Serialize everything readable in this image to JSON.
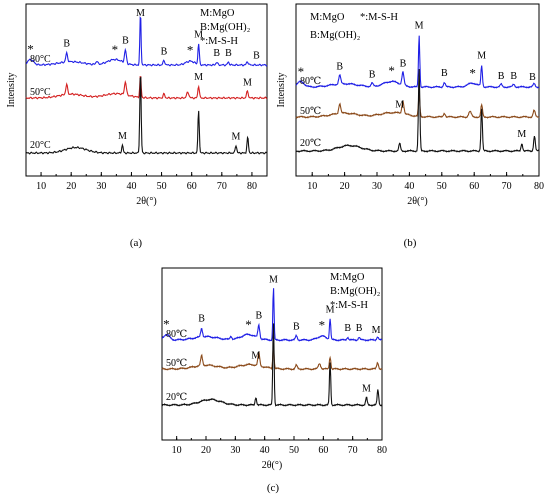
{
  "figure": {
    "panel_labels": [
      "(a)",
      "(b)",
      "(c)"
    ]
  },
  "chart_data": [
    {
      "panel": "(a)",
      "type": "line",
      "xlabel": "2θ(°)",
      "ylabel": "Intensity",
      "xlim": [
        5,
        85
      ],
      "x_ticks": [
        "10",
        "20",
        "30",
        "40",
        "50",
        "60",
        "70",
        "80"
      ],
      "legend": [
        "M:MgO",
        "B:Mg(OH)₂",
        "*:M-S-H"
      ],
      "series": [
        {
          "name": "80°C",
          "color": "#1f1fe6"
        },
        {
          "name": "50°C",
          "color": "#d42020"
        },
        {
          "name": "20°C",
          "color": "#111111"
        }
      ],
      "peak_labels": [
        {
          "series": 0,
          "x": 6.5,
          "label": "*"
        },
        {
          "series": 0,
          "x": 18.5,
          "label": "B"
        },
        {
          "series": 0,
          "x": 34.5,
          "label": "*"
        },
        {
          "series": 0,
          "x": 38,
          "label": "B"
        },
        {
          "series": 0,
          "x": 43,
          "label": "M"
        },
        {
          "series": 0,
          "x": 50.8,
          "label": "B"
        },
        {
          "series": 0,
          "x": 59.5,
          "label": "*"
        },
        {
          "series": 0,
          "x": 62.3,
          "label": "M"
        },
        {
          "series": 0,
          "x": 68.3,
          "label": "B"
        },
        {
          "series": 0,
          "x": 72.2,
          "label": "B"
        },
        {
          "series": 0,
          "x": 81.5,
          "label": "B"
        },
        {
          "series": 1,
          "x": 62.3,
          "label": "M"
        },
        {
          "series": 1,
          "x": 78.5,
          "label": "M"
        },
        {
          "series": 2,
          "x": 37,
          "label": "M"
        },
        {
          "series": 2,
          "x": 74.7,
          "label": "M"
        }
      ]
    },
    {
      "panel": "(b)",
      "type": "line",
      "xlabel": "2θ(°)",
      "ylabel": "Intensity",
      "xlim": [
        5,
        80
      ],
      "x_ticks": [
        "10",
        "20",
        "30",
        "40",
        "50",
        "60",
        "70",
        "80"
      ],
      "legend": [
        "M:MgO",
        "*:M-S-H",
        "B:Mg(OH)₂"
      ],
      "series": [
        {
          "name": "80℃",
          "color": "#1f1fe6"
        },
        {
          "name": "50℃",
          "color": "#8b4a1a"
        },
        {
          "name": "20℃",
          "color": "#111111"
        }
      ],
      "peak_labels": [
        {
          "series": 0,
          "x": 6.5,
          "label": "*"
        },
        {
          "series": 0,
          "x": 18.5,
          "label": "B"
        },
        {
          "series": 0,
          "x": 28.5,
          "label": "B"
        },
        {
          "series": 0,
          "x": 34.5,
          "label": "*"
        },
        {
          "series": 0,
          "x": 38,
          "label": "B"
        },
        {
          "series": 0,
          "x": 43,
          "label": "M"
        },
        {
          "series": 0,
          "x": 50.8,
          "label": "B"
        },
        {
          "series": 0,
          "x": 59.5,
          "label": "*"
        },
        {
          "series": 0,
          "x": 62.3,
          "label": "M"
        },
        {
          "series": 0,
          "x": 68.3,
          "label": "B"
        },
        {
          "series": 0,
          "x": 72.2,
          "label": "B"
        },
        {
          "series": 0,
          "x": 78,
          "label": "B"
        },
        {
          "series": 1,
          "x": 37,
          "label": "M"
        },
        {
          "series": 2,
          "x": 74.7,
          "label": "M"
        }
      ]
    },
    {
      "panel": "(c)",
      "type": "line",
      "xlabel": "2θ(°)",
      "xlim": [
        5,
        80
      ],
      "x_ticks": [
        "10",
        "20",
        "30",
        "40",
        "50",
        "60",
        "70",
        "80"
      ],
      "legend": [
        "M:MgO",
        "B:Mg(OH)₂",
        "*:M-S-H"
      ],
      "series": [
        {
          "name": "80℃",
          "color": "#1f1fe6"
        },
        {
          "name": "50℃",
          "color": "#8b4a1a"
        },
        {
          "name": "20℃",
          "color": "#111111"
        }
      ],
      "peak_labels": [
        {
          "series": 0,
          "x": 6.5,
          "label": "*"
        },
        {
          "series": 0,
          "x": 18.5,
          "label": "B"
        },
        {
          "series": 0,
          "x": 34.5,
          "label": "*"
        },
        {
          "series": 0,
          "x": 38,
          "label": "B"
        },
        {
          "series": 0,
          "x": 43,
          "label": "M"
        },
        {
          "series": 0,
          "x": 50.8,
          "label": "B"
        },
        {
          "series": 0,
          "x": 59.5,
          "label": "*"
        },
        {
          "series": 0,
          "x": 62.3,
          "label": "M"
        },
        {
          "series": 0,
          "x": 68.3,
          "label": "B"
        },
        {
          "series": 0,
          "x": 72.2,
          "label": "B"
        },
        {
          "series": 0,
          "x": 78,
          "label": "M"
        },
        {
          "series": 1,
          "x": 37,
          "label": "M"
        },
        {
          "series": 2,
          "x": 74.7,
          "label": "M"
        }
      ]
    }
  ]
}
